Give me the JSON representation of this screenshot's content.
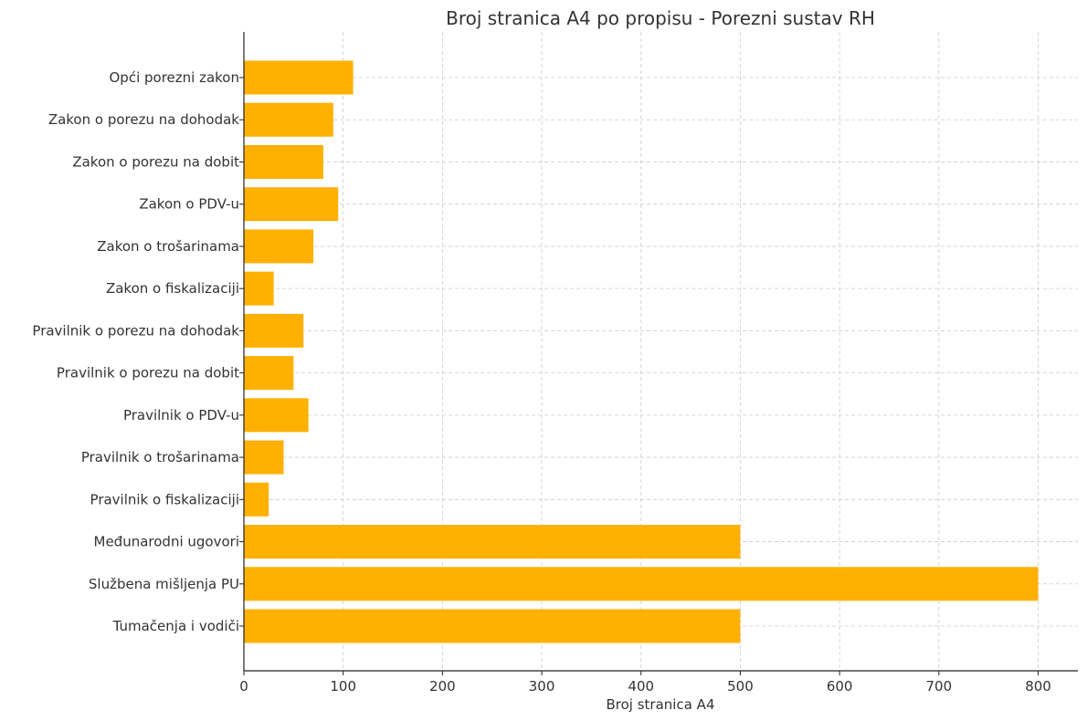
{
  "chart_data": {
    "type": "bar",
    "orientation": "horizontal",
    "title": "Broj stranica A4 po propisu - Porezni sustav RH",
    "xlabel": "Broj stranica A4",
    "ylabel": "",
    "xlim": [
      0,
      840
    ],
    "xticks": [
      0,
      100,
      200,
      300,
      400,
      500,
      600,
      700,
      800
    ],
    "grid": true,
    "bar_color": "#FFB000",
    "categories": [
      "Opći porezni zakon",
      "Zakon o porezu na dohodak",
      "Zakon o porezu na dobit",
      "Zakon o PDV-u",
      "Zakon o trošarinama",
      "Zakon o fiskalizaciji",
      "Pravilnik o porezu na dohodak",
      "Pravilnik o porezu na dobit",
      "Pravilnik o PDV-u",
      "Pravilnik o trošarinama",
      "Pravilnik o fiskalizaciji",
      "Međunarodni ugovori",
      "Službena mišljenja PU",
      "Tumačenja i vodiči"
    ],
    "values": [
      110,
      90,
      80,
      95,
      70,
      30,
      60,
      50,
      65,
      40,
      25,
      500,
      800,
      500
    ]
  }
}
